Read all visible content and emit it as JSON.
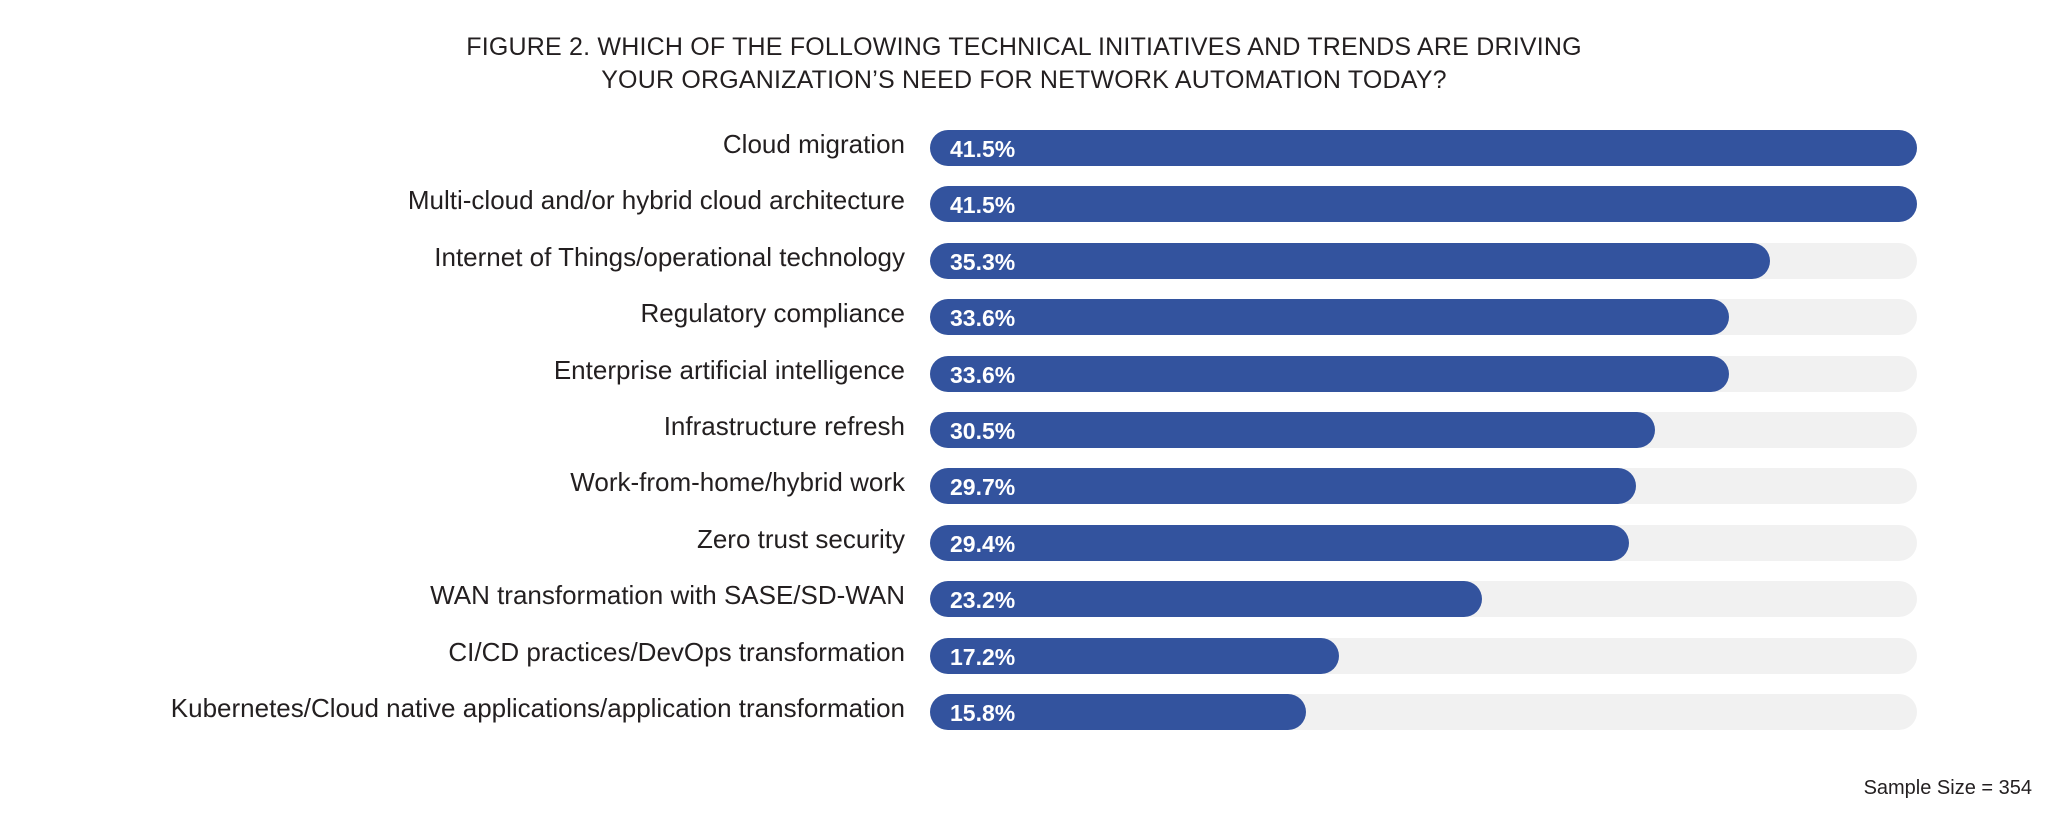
{
  "title": {
    "line1": "FIGURE 2. WHICH OF THE FOLLOWING TECHNICAL INITIATIVES AND TRENDS ARE DRIVING",
    "line2": "YOUR ORGANIZATION’S NEED FOR NETWORK AUTOMATION TODAY?"
  },
  "footer": {
    "sample_size": "Sample Size = 354"
  },
  "colors": {
    "bar": "#33539e",
    "track": "#f1f1f1"
  },
  "chart_data": {
    "type": "bar",
    "orientation": "horizontal",
    "title": "FIGURE 2. WHICH OF THE FOLLOWING TECHNICAL INITIATIVES AND TRENDS ARE DRIVING YOUR ORGANIZATION’S NEED FOR NETWORK AUTOMATION TODAY?",
    "xlabel": "",
    "ylabel": "",
    "xlim": [
      0,
      41.5
    ],
    "grid": false,
    "categories": [
      "Cloud migration",
      "Multi-cloud and/or hybrid cloud architecture",
      "Internet of Things/operational technology",
      "Regulatory compliance",
      "Enterprise artificial intelligence",
      "Infrastructure refresh",
      "Work-from-home/hybrid work",
      "Zero trust security",
      "WAN transformation with SASE/SD-WAN",
      "CI/CD practices/DevOps transformation",
      "Kubernetes/Cloud native applications/application transformation"
    ],
    "values": [
      41.5,
      41.5,
      35.3,
      33.6,
      33.6,
      30.5,
      29.7,
      29.4,
      23.2,
      17.2,
      15.8
    ],
    "value_labels": [
      "41.5%",
      "41.5%",
      "35.3%",
      "33.6%",
      "33.6%",
      "30.5%",
      "29.7%",
      "29.4%",
      "23.2%",
      "17.2%",
      "15.8%"
    ]
  }
}
